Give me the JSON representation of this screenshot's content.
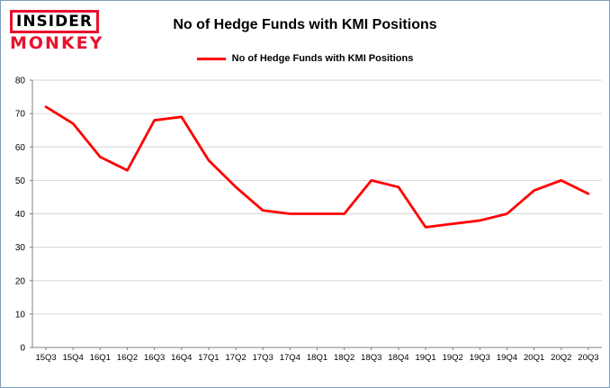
{
  "header": {
    "logo_line1": "INSIDER",
    "logo_line2": "MONKEY",
    "title": "No of Hedge Funds with KMI Positions"
  },
  "legend": {
    "label": "No of Hedge Funds with KMI Positions",
    "color": "#ff0000"
  },
  "chart_data": {
    "type": "line",
    "title": "No of Hedge Funds with KMI Positions",
    "categories": [
      "15Q3",
      "15Q4",
      "16Q1",
      "16Q2",
      "16Q3",
      "16Q4",
      "17Q1",
      "17Q2",
      "17Q3",
      "17Q4",
      "18Q1",
      "18Q2",
      "18Q3",
      "18Q4",
      "19Q1",
      "19Q2",
      "19Q3",
      "19Q4",
      "20Q1",
      "20Q2",
      "20Q3"
    ],
    "values": [
      72,
      67,
      57,
      53,
      68,
      69,
      56,
      48,
      41,
      40,
      40,
      40,
      50,
      48,
      36,
      37,
      38,
      40,
      47,
      50,
      46
    ],
    "xlabel": "",
    "ylabel": "",
    "ylim": [
      0,
      80
    ],
    "ytick_step": 10,
    "grid": true,
    "line_color": "#ff0000",
    "grid_color": "#d6d6d6",
    "axis_color": "#808080",
    "legend_position": "top"
  }
}
